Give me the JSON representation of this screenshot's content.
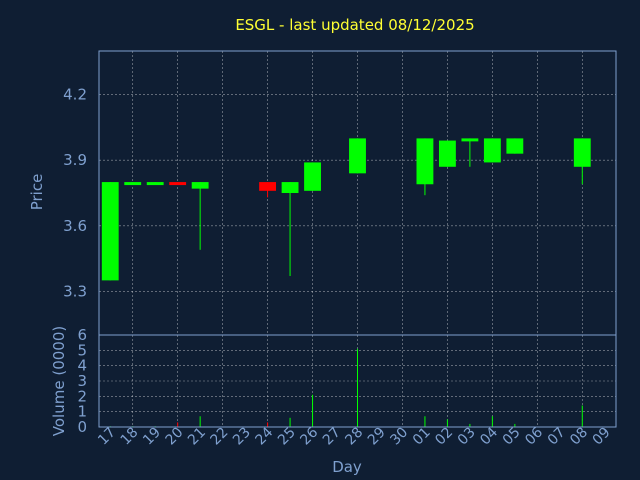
{
  "chart_data": {
    "type": "candlestick",
    "title": "ESGL - last updated 08/12/2025",
    "xlabel": "Day",
    "ylabel": "Price",
    "volume_ylabel": "Volume (0000)",
    "price_ylim": [
      3.1,
      4.4
    ],
    "price_yticks": [
      3.3,
      3.6,
      3.9,
      4.2
    ],
    "volume_ylim": [
      0,
      6
    ],
    "volume_yticks": [
      0,
      1,
      2,
      3,
      4,
      5,
      6
    ],
    "grid": true,
    "colors": {
      "up": "#00ff00",
      "down": "#ff0000",
      "background": "#0f1e33",
      "axis": "#7fa0cf",
      "title": "#ffff33"
    },
    "categories": [
      "17",
      "18",
      "19",
      "20",
      "21",
      "22",
      "23",
      "24",
      "25",
      "26",
      "27",
      "28",
      "29",
      "30",
      "01",
      "02",
      "03",
      "04",
      "05",
      "06",
      "07",
      "08",
      "09"
    ],
    "candles": [
      {
        "day": "17",
        "open": 3.35,
        "high": 3.8,
        "low": 3.35,
        "close": 3.8,
        "volume": 0.05
      },
      {
        "day": "18",
        "open": 3.79,
        "high": 3.8,
        "low": 3.79,
        "close": 3.8,
        "volume": 0.05
      },
      {
        "day": "19",
        "open": 3.79,
        "high": 3.8,
        "low": 3.79,
        "close": 3.8,
        "volume": 0.05
      },
      {
        "day": "20",
        "open": 3.8,
        "high": 3.8,
        "low": 3.79,
        "close": 3.79,
        "volume": 0.3
      },
      {
        "day": "21",
        "open": 3.77,
        "high": 3.8,
        "low": 3.49,
        "close": 3.8,
        "volume": 0.7
      },
      {
        "day": "24",
        "open": 3.8,
        "high": 3.8,
        "low": 3.73,
        "close": 3.76,
        "volume": 0.3
      },
      {
        "day": "25",
        "open": 3.75,
        "high": 3.8,
        "low": 3.37,
        "close": 3.8,
        "volume": 0.6
      },
      {
        "day": "26",
        "open": 3.76,
        "high": 3.89,
        "low": 3.76,
        "close": 3.89,
        "volume": 2.1
      },
      {
        "day": "28",
        "open": 3.84,
        "high": 4.0,
        "low": 3.84,
        "close": 4.0,
        "volume": 5.1
      },
      {
        "day": "01",
        "open": 3.79,
        "high": 4.0,
        "low": 3.74,
        "close": 4.0,
        "volume": 0.7
      },
      {
        "day": "02",
        "open": 3.87,
        "high": 3.99,
        "low": 3.87,
        "close": 3.99,
        "volume": 0.5
      },
      {
        "day": "03",
        "open": 3.99,
        "high": 4.0,
        "low": 3.87,
        "close": 4.0,
        "volume": 0.2
      },
      {
        "day": "04",
        "open": 3.89,
        "high": 4.0,
        "low": 3.89,
        "close": 4.0,
        "volume": 0.7
      },
      {
        "day": "05",
        "open": 3.93,
        "high": 4.0,
        "low": 3.93,
        "close": 4.0,
        "volume": 0.2
      },
      {
        "day": "08",
        "open": 3.87,
        "high": 4.0,
        "low": 3.79,
        "close": 4.0,
        "volume": 1.4
      }
    ]
  }
}
